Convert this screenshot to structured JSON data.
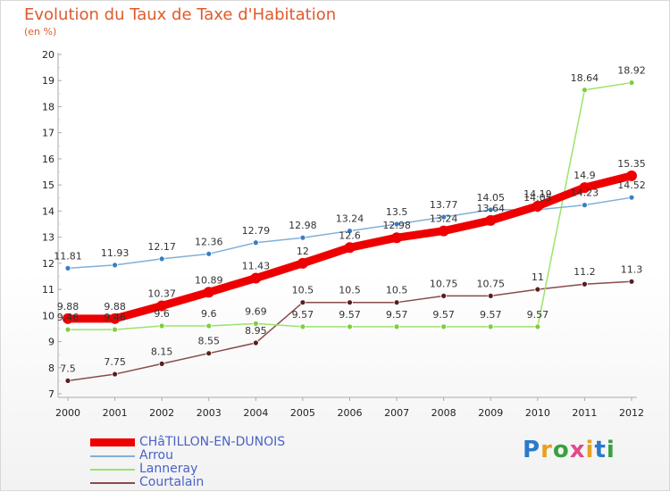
{
  "chart_data": {
    "type": "line",
    "title": "Evolution du Taux de Taxe d'Habitation",
    "subtitle": "(en %)",
    "x": [
      2000,
      2001,
      2002,
      2003,
      2004,
      2005,
      2006,
      2007,
      2008,
      2009,
      2010,
      2011,
      2012
    ],
    "xlabels": [
      "2000",
      "2001",
      "2002",
      "2003",
      "2004",
      "2005",
      "2006",
      "2007",
      "2008",
      "2009",
      "2010",
      "2011",
      "2012"
    ],
    "ylim": [
      7,
      20
    ],
    "yticks": [
      "7",
      "8",
      "9",
      "10",
      "11",
      "12",
      "13",
      "14",
      "15",
      "16",
      "17",
      "18",
      "19",
      "20"
    ],
    "grid": false,
    "legend_position": "bottom-left",
    "series": [
      {
        "name": "CHâTILLON-EN-DUNOIS",
        "color": "#ee0000",
        "point_color": "#ee0000",
        "width": 9,
        "values": [
          9.88,
          9.88,
          10.37,
          10.89,
          11.43,
          12,
          12.6,
          12.98,
          13.24,
          13.64,
          14.19,
          14.9,
          15.35
        ],
        "labels": [
          "9.88",
          "9.88",
          "10.37",
          "10.89",
          "11.43",
          "12",
          "12.6",
          "12.98",
          "13.24",
          "13.64",
          "14.19",
          "14.9",
          "15.35"
        ]
      },
      {
        "name": "Arrou",
        "color": "#7fb0da",
        "point_color": "#3a7fc0",
        "width": 1.5,
        "values": [
          11.81,
          11.93,
          12.17,
          12.36,
          12.79,
          12.98,
          13.24,
          13.5,
          13.77,
          14.05,
          14.05,
          14.23,
          14.52
        ],
        "labels": [
          "11.81",
          "11.93",
          "12.17",
          "12.36",
          "12.79",
          "12.98",
          "13.24",
          "13.5",
          "13.77",
          "14.05",
          "14.05",
          "14.23",
          "14.52"
        ]
      },
      {
        "name": "Lanneray",
        "color": "#9be36b",
        "point_color": "#7ccf3e",
        "width": 1.5,
        "values": [
          9.46,
          9.46,
          9.6,
          9.6,
          9.69,
          9.57,
          9.57,
          9.57,
          9.57,
          9.57,
          9.57,
          18.64,
          18.92
        ],
        "labels": [
          "9.46",
          "9.46",
          "9.6",
          "9.6",
          "9.69",
          "9.57",
          "9.57",
          "9.57",
          "9.57",
          "9.57",
          "9.57",
          "18.64",
          "18.92"
        ]
      },
      {
        "name": "Courtalain",
        "color": "#8a4a4a",
        "point_color": "#5a1e1e",
        "width": 1.5,
        "values": [
          7.5,
          7.75,
          8.15,
          8.55,
          8.95,
          10.5,
          10.5,
          10.5,
          10.75,
          10.75,
          11,
          11.2,
          11.3
        ],
        "labels": [
          "7.5",
          "7.75",
          "8.15",
          "8.55",
          "8.95",
          "10.5",
          "10.5",
          "10.5",
          "10.75",
          "10.75",
          "11",
          "11.2",
          "11.3"
        ]
      }
    ]
  },
  "logo": {
    "letters": [
      "P",
      "r",
      "o",
      "x",
      "i",
      "t",
      "i"
    ],
    "colors": [
      "#2a7ac8",
      "#e8a020",
      "#3aa040",
      "#e04a8a",
      "#e8a020",
      "#2a7ac8",
      "#3aa040"
    ]
  }
}
